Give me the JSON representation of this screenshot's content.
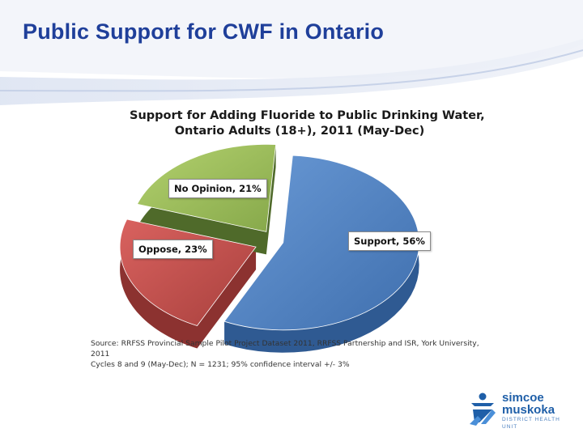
{
  "slide": {
    "title": "Public Support for CWF in Ontario",
    "source_line1": "Source: RRFSS Provincial Sample Pilot Project Dataset 2011, RRFSS Partnership and ISR, York University, 2011",
    "source_line2": "Cycles 8 and 9 (May-Dec); N = 1231; 95% confidence interval +/- 3%"
  },
  "logo": {
    "line1": "simcoe",
    "line2": "muskoka",
    "line3": "DISTRICT HEALTH UNIT"
  },
  "colors": {
    "title": "#1f3f9a",
    "support": "#4f81bd",
    "oppose": "#c0504d",
    "no_opinion": "#9bbb59"
  },
  "chart_data": {
    "type": "pie",
    "title_line1": "Support for Adding Fluoride to Public Drinking Water,",
    "title_line2": "Ontario Adults (18+), 2011 (May-Dec)",
    "slices": [
      {
        "name": "Support",
        "value": 56,
        "label": "Support, 56%",
        "color": "#4f81bd"
      },
      {
        "name": "Oppose",
        "value": 23,
        "label": "Oppose, 23%",
        "color": "#c0504d"
      },
      {
        "name": "No Opinion",
        "value": 21,
        "label": "No Opinion, 21%",
        "color": "#9bbb59"
      }
    ],
    "style": "3d-exploded",
    "legend": "none"
  }
}
